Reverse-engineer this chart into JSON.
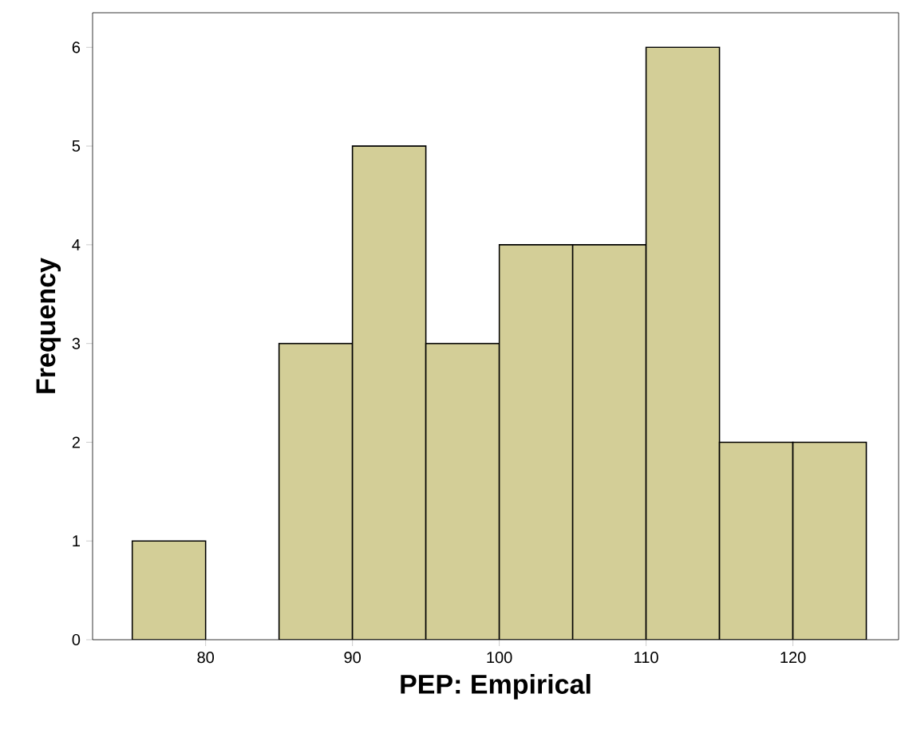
{
  "chart_data": {
    "type": "histogram",
    "xlabel": "PEP: Empirical",
    "ylabel": "Frequency",
    "bins": [
      75,
      80,
      85,
      90,
      95,
      100,
      105,
      110,
      115,
      120,
      125
    ],
    "values": [
      1,
      0,
      3,
      5,
      3,
      4,
      4,
      6,
      2,
      2
    ],
    "color": "#d3ce97",
    "xlim": [
      72.3,
      127.2
    ],
    "ylim": [
      0,
      6.35
    ],
    "xticks": [
      80,
      90,
      100,
      110,
      120
    ],
    "yticks": [
      0,
      1,
      2,
      3,
      4,
      5,
      6
    ],
    "grid": false
  }
}
